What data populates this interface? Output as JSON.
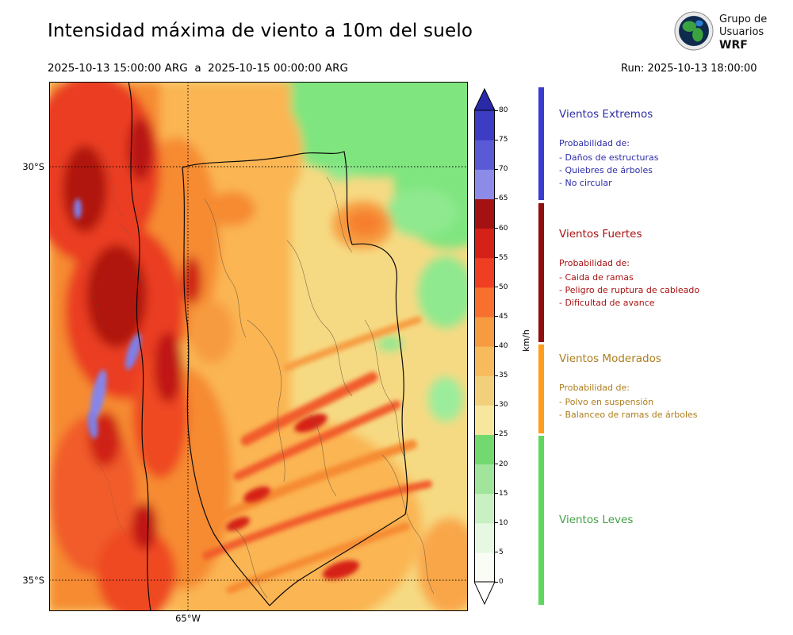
{
  "header": {
    "title": "Intensidad máxima de viento a 10m del suelo",
    "date_range": "2025-10-13 15:00:00 ARG  a  2025-10-15 00:00:00 ARG",
    "run_label": "Run: 2025-10-13 18:00:00",
    "logo_line1": "Grupo de",
    "logo_line2": "Usuarios",
    "logo_line3": "WRF"
  },
  "map_axes": {
    "lat_top": "30°S",
    "lat_bottom": "35°S",
    "lon": "65°W"
  },
  "colorbar": {
    "unit": "km/h",
    "ticks": [
      "0",
      "5",
      "10",
      "15",
      "20",
      "25",
      "30",
      "35",
      "40",
      "45",
      "50",
      "55",
      "60",
      "65",
      "70",
      "75",
      "80"
    ],
    "segment_colors": [
      "#f9fdf6",
      "#e6f8e2",
      "#c8f0c2",
      "#a0e59b",
      "#72d96e",
      "#f7e69d",
      "#f2d07b",
      "#f7ba5c",
      "#f79b40",
      "#f7702e",
      "#ef3e22",
      "#d62119",
      "#a41113",
      "#8c8ce8",
      "#5a5ad6",
      "#3c3cc4"
    ],
    "arrow_top_color": "#2a2aa8",
    "arrow_bottom_color": "#ffffff"
  },
  "legend": {
    "sections": [
      {
        "title": "Vientos Extremos",
        "text_color": "#2d2da8",
        "strip_color": "#3b3bd0",
        "prob_label": "Probabilidad de:",
        "items": [
          "- Daños de estructuras",
          "- Quiebres de árboles",
          "- No circular"
        ]
      },
      {
        "title": "Vientos Fuertes",
        "text_color": "#a81212",
        "strip_color": "#8f0e0e",
        "prob_label": "Probabilidad de:",
        "items": [
          "- Caida de ramas",
          "- Peligro de ruptura de cableado",
          "- Dificultad de avance"
        ]
      },
      {
        "title": "Vientos Moderados",
        "text_color": "#ad7d1c",
        "strip_color": "#ff9d1e",
        "prob_label": "Probabilidad de:",
        "items": [
          "- Polvo en suspensión",
          "- Balanceo de ramas de árboles"
        ]
      },
      {
        "title": "Vientos Leves",
        "text_color": "#43a047",
        "strip_color": "#5fd75f",
        "prob_label": "",
        "items": []
      }
    ]
  },
  "chart_data": {
    "type": "heatmap",
    "title": "Intensidad máxima de viento a 10m del suelo",
    "unit": "km/h",
    "colorbar_ticks": [
      0,
      5,
      10,
      15,
      20,
      25,
      30,
      35,
      40,
      45,
      50,
      55,
      60,
      65,
      70,
      75,
      80
    ],
    "colorbar_range_extended": "0 a 80+ km/h",
    "lat_gridlines": [
      "30°S",
      "35°S"
    ],
    "lon_gridlines": [
      "65°W"
    ]
  }
}
